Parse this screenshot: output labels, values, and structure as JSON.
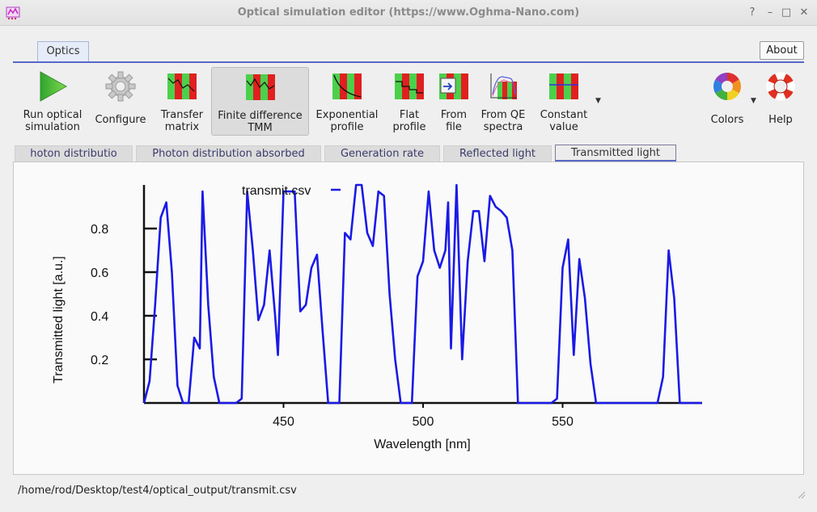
{
  "window": {
    "title": "Optical simulation editor (https://www.Oghma-Nano.com)",
    "controls": {
      "help": "?",
      "minimize": "–",
      "maximize": "□",
      "close": "✕"
    }
  },
  "ribbon": {
    "tab": "Optics",
    "about_label": "About",
    "tools": [
      {
        "label": "Run optical\nsimulation",
        "icon": "play-icon"
      },
      {
        "label": "Configure",
        "icon": "gear-icon"
      },
      {
        "label": "Transfer\nmatrix",
        "icon": "transfer-matrix-icon"
      },
      {
        "label": "Finite difference\nTMM",
        "icon": "finite-difference-icon"
      },
      {
        "label": "Exponential\nprofile",
        "icon": "exponential-profile-icon"
      },
      {
        "label": "Flat\nprofile",
        "icon": "flat-profile-icon"
      },
      {
        "label": "From\nfile",
        "icon": "from-file-icon"
      },
      {
        "label": "From QE\nspectra",
        "icon": "qe-spectra-icon"
      },
      {
        "label": "Constant\nvalue",
        "icon": "constant-value-icon"
      },
      {
        "label": "Colors",
        "icon": "color-wheel-icon"
      },
      {
        "label": "Help",
        "icon": "lifebuoy-icon"
      }
    ]
  },
  "subtabs": [
    "hoton distributio",
    "Photon distribution absorbed",
    "Generation rate",
    "Reflected light",
    "Transmitted light"
  ],
  "selected_subtab": "Transmitted light",
  "chart_data": {
    "type": "line",
    "title": "",
    "xlabel": "Wavelength [nm]",
    "ylabel": "Transmitted light [a.u.]",
    "xlim": [
      400,
      600
    ],
    "ylim": [
      0,
      1.0
    ],
    "x_ticks": [
      "450",
      "500",
      "550"
    ],
    "y_ticks": [
      "0.2",
      "0.4",
      "0.6",
      "0.8"
    ],
    "legend_position": "top",
    "series": [
      {
        "name": "transmit.csv",
        "color": "#1a1ae6",
        "x": [
          400,
          402,
          404,
          406,
          408,
          410,
          412,
          414,
          416,
          418,
          420,
          421,
          423,
          425,
          427,
          429,
          431,
          433,
          435,
          437,
          439,
          441,
          443,
          445,
          447,
          448,
          450,
          452,
          454,
          456,
          458,
          460,
          462,
          464,
          466,
          468,
          470,
          472,
          474,
          476,
          478,
          480,
          482,
          484,
          486,
          488,
          490,
          492,
          494,
          496,
          498,
          500,
          502,
          504,
          506,
          508,
          509,
          510,
          512,
          514,
          516,
          518,
          520,
          522,
          524,
          526,
          528,
          530,
          532,
          534,
          536,
          538,
          540,
          542,
          544,
          546,
          548,
          550,
          552,
          554,
          556,
          558,
          560,
          562,
          564,
          566,
          568,
          570,
          572,
          574,
          576,
          578,
          580,
          582,
          584,
          586,
          588,
          590,
          592,
          594,
          596,
          598,
          600
        ],
        "y": [
          0,
          0.1,
          0.45,
          0.85,
          0.92,
          0.6,
          0.08,
          0,
          0,
          0.3,
          0.25,
          0.97,
          0.45,
          0.12,
          0,
          0,
          0,
          0,
          0.02,
          0.97,
          0.7,
          0.38,
          0.45,
          0.7,
          0.4,
          0.22,
          0.97,
          0.97,
          0.97,
          0.42,
          0.45,
          0.62,
          0.68,
          0.33,
          0,
          0,
          0,
          0.78,
          0.75,
          1.0,
          1.0,
          0.78,
          0.72,
          0.97,
          0.95,
          0.5,
          0.2,
          0,
          0,
          0,
          0.58,
          0.65,
          0.97,
          0.7,
          0.62,
          0.7,
          0.92,
          0.25,
          1.0,
          0.2,
          0.65,
          0.88,
          0.88,
          0.65,
          0.95,
          0.9,
          0.88,
          0.85,
          0.7,
          0,
          0,
          0,
          0,
          0,
          0,
          0,
          0.02,
          0.62,
          0.75,
          0.22,
          0.66,
          0.48,
          0.18,
          0,
          0,
          0,
          0,
          0,
          0,
          0,
          0,
          0,
          0,
          0,
          0,
          0.12,
          0.7,
          0.48,
          0,
          0,
          0,
          0,
          0
        ]
      }
    ]
  },
  "status_path": "/home/rod/Desktop/test4/optical_output/transmit.csv"
}
